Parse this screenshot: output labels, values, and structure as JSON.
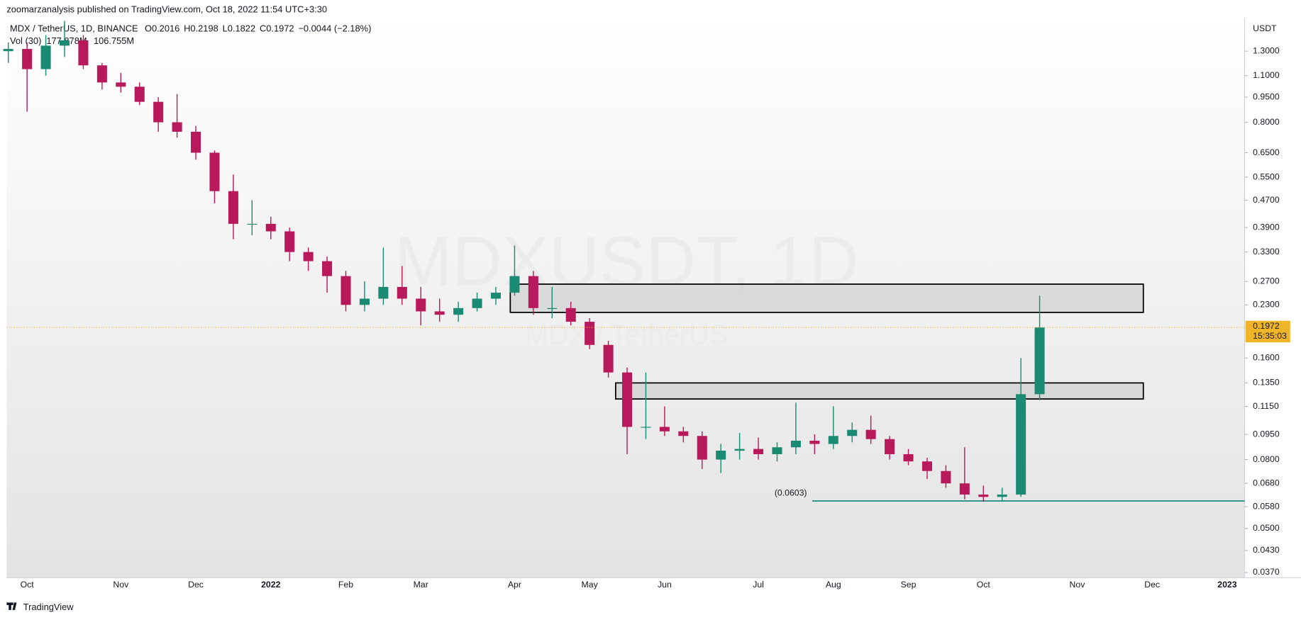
{
  "header": "zoomarzanalysis published on TradingView.com, Oct 18, 2022 11:54 UTC+3:30",
  "footer": "TradingView",
  "legend": {
    "symbol": "MDX / TetherUS, 1D, BINANCE",
    "ohlc": [
      "O0.2016",
      "H0.2198",
      "L0.1822",
      "C0.1972",
      "−0.0044 (−2.18%)"
    ],
    "ohlc_color": "#c2185b",
    "volume_label": "Vol (30)",
    "volume_values": [
      {
        "label": "177.878M",
        "color": "#c2185b"
      },
      {
        "label": "106.755M",
        "color": "#2962ff"
      }
    ]
  },
  "chart_data": {
    "type": "candlestick",
    "watermark": "MDXUSDT, 1D",
    "watermark_sub": "MDX / TetherUS",
    "y_unit": "USDT",
    "log_scale": true,
    "grid": false,
    "up_color": "#1b8a72",
    "down_color": "#b8195a",
    "x": [
      null,
      "Oct",
      null,
      null,
      null,
      null,
      "Nov",
      null,
      null,
      null,
      "Dec",
      null,
      null,
      null,
      "2022",
      null,
      null,
      null,
      "Feb",
      null,
      null,
      null,
      "Mar",
      null,
      null,
      null,
      null,
      "Apr",
      null,
      null,
      null,
      "May",
      null,
      null,
      null,
      "Jun",
      null,
      null,
      null,
      null,
      "Jul",
      null,
      null,
      null,
      "Aug",
      null,
      null,
      null,
      "Sep",
      null,
      null,
      null,
      "Oct",
      null,
      null,
      null,
      null,
      "Nov",
      null,
      null,
      null,
      "Dec",
      null,
      null,
      null,
      "2023",
      null
    ],
    "open": [
      1.3,
      1.32,
      1.15,
      1.35,
      1.4,
      1.18,
      1.05,
      1.02,
      0.92,
      0.8,
      0.75,
      0.65,
      0.5,
      0.4,
      0.4,
      0.38,
      0.33,
      0.31,
      0.28,
      0.23,
      0.24,
      0.26,
      0.24,
      0.22,
      0.215,
      0.225,
      0.24,
      0.25,
      0.28,
      0.225,
      0.225,
      0.205,
      0.175,
      0.145,
      0.1,
      0.1,
      0.097,
      0.094,
      0.08,
      0.085,
      0.086,
      0.083,
      0.087,
      0.091,
      0.089,
      0.094,
      0.098,
      0.092,
      0.083,
      0.079,
      0.074,
      0.068,
      0.063,
      0.062,
      0.063,
      0.125,
      null,
      null,
      null,
      null,
      null,
      null,
      null,
      null,
      null,
      null,
      null
    ],
    "high": [
      1.38,
      1.38,
      1.45,
      1.6,
      1.45,
      1.2,
      1.12,
      1.05,
      0.95,
      0.97,
      0.78,
      0.66,
      0.56,
      0.47,
      0.42,
      0.39,
      0.34,
      0.32,
      0.29,
      0.27,
      0.34,
      0.3,
      0.26,
      0.24,
      0.235,
      0.25,
      0.26,
      0.345,
      0.29,
      0.26,
      0.235,
      0.21,
      0.18,
      0.15,
      0.145,
      0.115,
      0.1,
      0.097,
      0.089,
      0.096,
      0.093,
      0.09,
      0.118,
      0.095,
      0.115,
      0.103,
      0.108,
      0.094,
      0.086,
      0.081,
      0.077,
      0.087,
      0.067,
      0.066,
      0.16,
      0.245,
      null,
      null,
      null,
      null,
      null,
      null,
      null,
      null,
      null,
      null,
      null
    ],
    "low": [
      1.2,
      0.86,
      1.1,
      1.25,
      1.15,
      1.0,
      0.98,
      0.9,
      0.75,
      0.72,
      0.62,
      0.46,
      0.36,
      0.37,
      0.36,
      0.31,
      0.29,
      0.25,
      0.22,
      0.22,
      0.23,
      0.23,
      0.2,
      0.205,
      0.205,
      0.22,
      0.23,
      0.245,
      0.215,
      0.21,
      0.2,
      0.17,
      0.14,
      0.083,
      0.092,
      0.094,
      0.09,
      0.075,
      0.073,
      0.08,
      0.08,
      0.079,
      0.083,
      0.083,
      0.086,
      0.09,
      0.089,
      0.08,
      0.077,
      0.07,
      0.066,
      0.061,
      0.06,
      0.0603,
      0.062,
      0.12,
      null,
      null,
      null,
      null,
      null,
      null,
      null,
      null,
      null,
      null,
      null
    ],
    "close": [
      1.32,
      1.15,
      1.35,
      1.4,
      1.18,
      1.05,
      1.02,
      0.92,
      0.8,
      0.75,
      0.65,
      0.5,
      0.4,
      0.4,
      0.38,
      0.33,
      0.31,
      0.28,
      0.23,
      0.24,
      0.26,
      0.24,
      0.22,
      0.215,
      0.225,
      0.24,
      0.25,
      0.28,
      0.225,
      0.225,
      0.205,
      0.175,
      0.145,
      0.1,
      0.1,
      0.097,
      0.094,
      0.08,
      0.085,
      0.086,
      0.083,
      0.087,
      0.091,
      0.089,
      0.094,
      0.098,
      0.092,
      0.083,
      0.079,
      0.074,
      0.068,
      0.063,
      0.062,
      0.063,
      0.125,
      0.1972,
      null,
      null,
      null,
      null,
      null,
      null,
      null,
      null,
      null,
      null,
      null
    ],
    "ylim": [
      0.036,
      1.6
    ],
    "yticks": [
      {
        "value": 1.3,
        "label": "1.3000"
      },
      {
        "value": 1.1,
        "label": "1.1000"
      },
      {
        "value": 0.95,
        "label": "0.9500"
      },
      {
        "value": 0.8,
        "label": "0.8000"
      },
      {
        "value": 0.65,
        "label": "0.6500"
      },
      {
        "value": 0.55,
        "label": "0.5500"
      },
      {
        "value": 0.47,
        "label": "0.4700"
      },
      {
        "value": 0.39,
        "label": "0.3900"
      },
      {
        "value": 0.33,
        "label": "0.3300"
      },
      {
        "value": 0.27,
        "label": "0.2700"
      },
      {
        "value": 0.23,
        "label": "0.2300"
      },
      {
        "value": 0.16,
        "label": "0.1600"
      },
      {
        "value": 0.135,
        "label": "0.1350"
      },
      {
        "value": 0.115,
        "label": "0.1150"
      },
      {
        "value": 0.095,
        "label": "0.0950"
      },
      {
        "value": 0.08,
        "label": "0.0800"
      },
      {
        "value": 0.068,
        "label": "0.0680"
      },
      {
        "value": 0.058,
        "label": "0.0580"
      },
      {
        "value": 0.05,
        "label": "0.0500"
      },
      {
        "value": 0.043,
        "label": "0.0430"
      },
      {
        "value": 0.037,
        "label": "0.0370"
      }
    ],
    "last_price": {
      "value": 0.1972,
      "label": "0.1972",
      "color": "#f0b429"
    },
    "countdown": "15:35:03",
    "zones": [
      {
        "top": 0.265,
        "bottom": 0.2185
      },
      {
        "top": 0.135,
        "bottom": 0.121
      }
    ],
    "support": {
      "value": 0.0603,
      "label": "(0.0603)",
      "color": "#1b8a7a"
    }
  }
}
